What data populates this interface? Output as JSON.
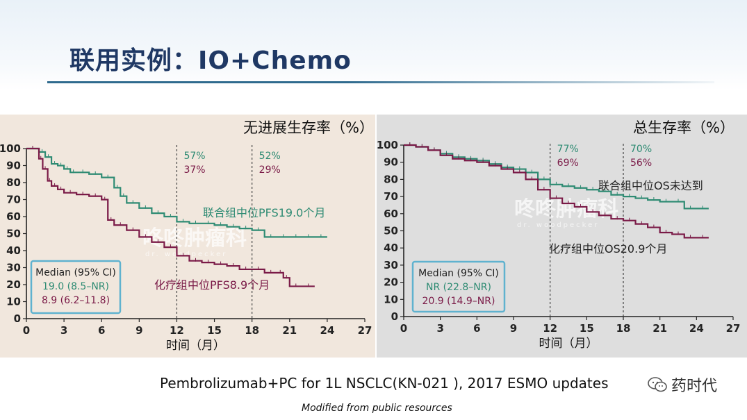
{
  "slide": {
    "title": "联用实例：IO+Chemo",
    "footer": "Pembrolizumab+PC for 1L NSCLC(KN-021 ), 2017 ESMO updates",
    "credit": "Modified from public resources",
    "wechat_label": "药时代",
    "watermark": "咚咚肿瘤科",
    "watermark_sub": "dr. woodpecker",
    "colors": {
      "combo": "#2e8b73",
      "chemo": "#7a1a47",
      "title": "#1f3864",
      "legend_border": "#5fb2cf"
    }
  },
  "chart_data": [
    {
      "type": "line",
      "title": "无进展生存率（%）",
      "xlabel": "时间（月）",
      "ylabel": "",
      "xlim": [
        0,
        27
      ],
      "ylim": [
        0,
        100
      ],
      "xticks": [
        0,
        3,
        6,
        9,
        12,
        15,
        18,
        21,
        24,
        27
      ],
      "yticks": [
        0,
        10,
        20,
        30,
        40,
        50,
        60,
        70,
        80,
        90,
        100
      ],
      "grid": false,
      "series": [
        {
          "key": "combo",
          "x": [
            0,
            1,
            1.5,
            2,
            2.5,
            3,
            3.5,
            4,
            5,
            6,
            7,
            7.5,
            8,
            9,
            10,
            11,
            12,
            13,
            14,
            15,
            16,
            17,
            18,
            19,
            20,
            21,
            22,
            23,
            24
          ],
          "y": [
            100,
            98,
            95,
            91,
            90,
            88,
            86,
            86,
            85,
            83,
            77,
            72,
            68,
            65,
            62,
            60,
            57,
            56,
            56,
            55,
            54,
            53,
            52,
            48,
            48,
            48,
            48,
            48,
            48
          ]
        },
        {
          "key": "chemo",
          "x": [
            0,
            1,
            1.3,
            1.7,
            2,
            2.5,
            3,
            4,
            5,
            6,
            6.5,
            7,
            8,
            9,
            10,
            11,
            12,
            13,
            14,
            15,
            16,
            17,
            18,
            19,
            20,
            20.5,
            21,
            22,
            23
          ],
          "y": [
            100,
            94,
            88,
            81,
            78,
            76,
            74,
            73,
            72,
            70,
            58,
            55,
            52,
            48,
            45,
            42,
            37,
            34,
            33,
            32,
            31,
            29,
            29,
            27,
            27,
            24,
            19,
            19,
            19
          ]
        }
      ],
      "annotations": [
        {
          "x": 12,
          "combo": "57%",
          "chemo": "37%"
        },
        {
          "x": 18,
          "combo": "52%",
          "chemo": "29%"
        }
      ],
      "median_labels": {
        "combo": "联合组中位PFS19.0个月",
        "chemo": "化疗组中位PFS8.9个月"
      },
      "legend": {
        "title": "Median (95% CI)",
        "combo": "19.0 (8.5–NR)",
        "chemo": "8.9 (6.2–11.8)",
        "placement": "bottom-left"
      }
    },
    {
      "type": "line",
      "title": "总生存率（%）",
      "xlabel": "时间（月）",
      "ylabel": "",
      "xlim": [
        0,
        27
      ],
      "ylim": [
        0,
        100
      ],
      "xticks": [
        0,
        3,
        6,
        9,
        12,
        15,
        18,
        21,
        24,
        27
      ],
      "yticks": [
        0,
        10,
        20,
        30,
        40,
        50,
        60,
        70,
        80,
        90,
        100
      ],
      "grid": false,
      "series": [
        {
          "key": "combo",
          "x": [
            0,
            1,
            2,
            3,
            4,
            5,
            6,
            7,
            8,
            9,
            10,
            11,
            12,
            13,
            14,
            15,
            16,
            17,
            18,
            19,
            20,
            21,
            22,
            23,
            24,
            25
          ],
          "y": [
            100,
            99,
            97,
            95,
            93,
            92,
            91,
            89,
            87,
            86,
            84,
            80,
            77,
            76,
            75,
            74,
            73,
            71,
            70,
            69,
            68,
            67,
            67,
            63,
            63,
            63
          ]
        },
        {
          "key": "chemo",
          "x": [
            0,
            1,
            2,
            3,
            4,
            5,
            6,
            7,
            8,
            9,
            10,
            11,
            12,
            13,
            14,
            15,
            16,
            17,
            18,
            19,
            20,
            21,
            22,
            23,
            24,
            25
          ],
          "y": [
            100,
            99,
            97,
            94,
            92,
            91,
            90,
            88,
            86,
            84,
            80,
            74,
            69,
            66,
            64,
            61,
            59,
            57,
            56,
            54,
            52,
            49,
            48,
            46,
            46,
            46
          ]
        }
      ],
      "annotations": [
        {
          "x": 12,
          "combo": "77%",
          "chemo": "69%"
        },
        {
          "x": 18,
          "combo": "70%",
          "chemo": "56%"
        }
      ],
      "median_labels": {
        "combo": "联合组中位OS未达到",
        "chemo": "化疗组中位OS20.9个月"
      },
      "legend": {
        "title": "Median (95% CI)",
        "combo": "NR (22.8–NR)",
        "chemo": "20.9 (14.9–NR)",
        "placement": "bottom-left"
      }
    }
  ]
}
